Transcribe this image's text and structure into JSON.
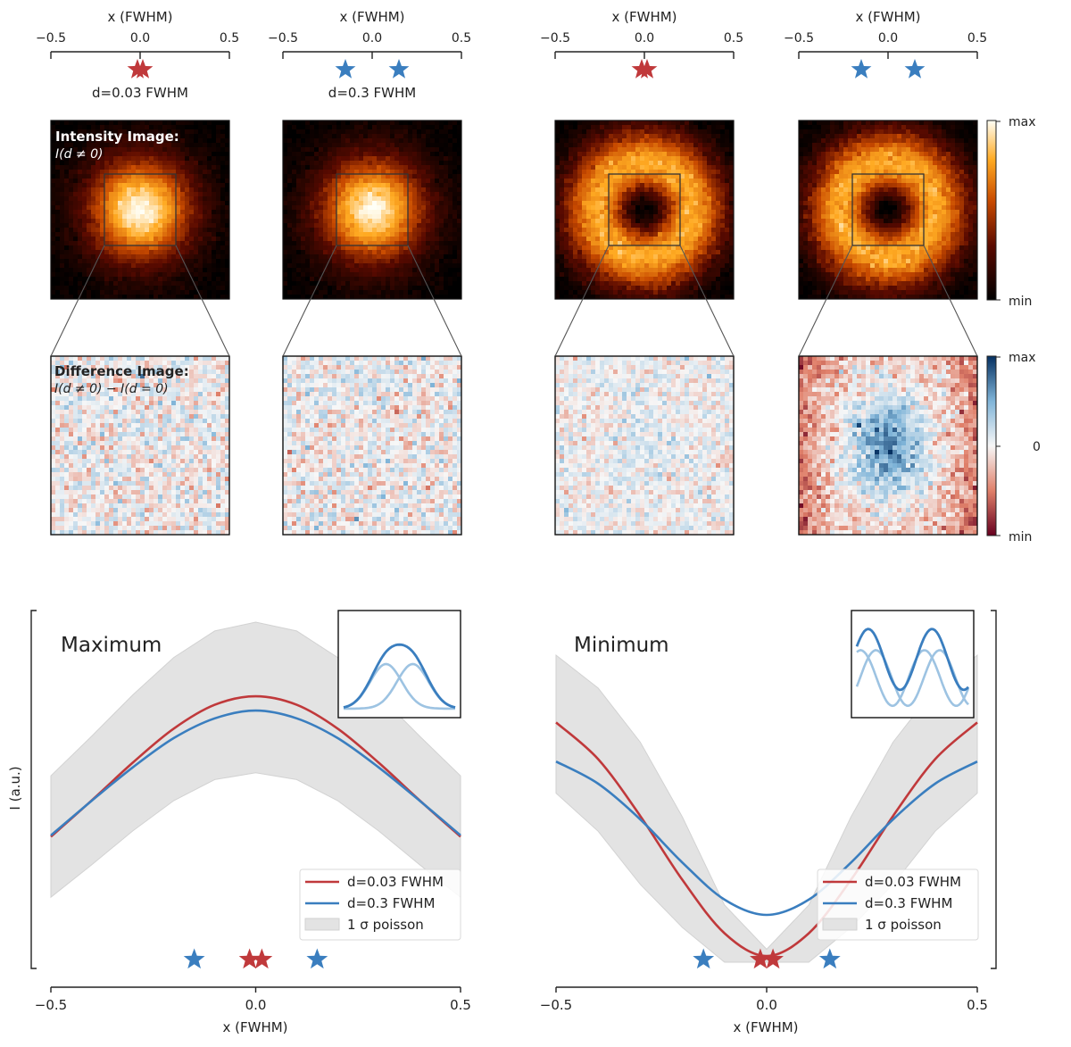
{
  "chart_data": {
    "type": "composite",
    "top_axes": [
      {
        "xlabel": "x (FWHM)",
        "ticks": [
          -0.5,
          0.0,
          0.5
        ],
        "tick_labels": [
          "−0.5",
          "0.0",
          "0.5"
        ],
        "xlim": [
          -0.5,
          0.5
        ],
        "star_color": "red",
        "star_positions": [
          -0.015,
          0.015
        ],
        "caption": "d=0.03 FWHM"
      },
      {
        "xlabel": "x (FWHM)",
        "ticks": [
          -0.5,
          0.0,
          0.5
        ],
        "tick_labels": [
          "−0.5",
          "0.0",
          "0.5"
        ],
        "xlim": [
          -0.5,
          0.5
        ],
        "star_color": "blue",
        "star_positions": [
          -0.15,
          0.15
        ],
        "caption": "d=0.3 FWHM"
      },
      {
        "xlabel": "x (FWHM)",
        "ticks": [
          -0.5,
          0.0,
          0.5
        ],
        "tick_labels": [
          "−0.5",
          "0.0",
          "0.5"
        ],
        "xlim": [
          -0.5,
          0.5
        ],
        "star_color": "red",
        "star_positions": [
          -0.015,
          0.015
        ],
        "caption": ""
      },
      {
        "xlabel": "x (FWHM)",
        "ticks": [
          -0.5,
          0.0,
          0.5
        ],
        "tick_labels": [
          "−0.5",
          "0.0",
          "0.5"
        ],
        "xlim": [
          -0.5,
          0.5
        ],
        "star_color": "blue",
        "star_positions": [
          -0.15,
          0.15
        ],
        "caption": ""
      }
    ],
    "intensity_images": {
      "title": "Intensity Image:",
      "subtitle": "I(d ≠ 0)",
      "panels": [
        {
          "profile": "gaussian",
          "d": 0.03
        },
        {
          "profile": "gaussian",
          "d": 0.3
        },
        {
          "profile": "donut",
          "d": 0.03
        },
        {
          "profile": "donut",
          "d": 0.3
        }
      ],
      "colorbar": {
        "cmap": "afmhot",
        "max_label": "max",
        "min_label": "min"
      }
    },
    "difference_images": {
      "title": "Difference Image:",
      "subtitle": "I(d ≠ 0) − I(d = 0)",
      "panels": [
        {
          "pattern": "noise"
        },
        {
          "pattern": "noise"
        },
        {
          "pattern": "weak-center"
        },
        {
          "pattern": "strong-center-positive-edges-negative"
        }
      ],
      "colorbar": {
        "cmap": "RdBu",
        "max_label": "max",
        "mid_label": "0",
        "min_label": "min"
      }
    },
    "line_plots": [
      {
        "title": "Maximum",
        "ylabel": "I (a.u.)",
        "xlabel": "x (FWHM)",
        "xlim": [
          -0.5,
          0.5
        ],
        "ticks": [
          -0.5,
          0.0,
          0.5
        ],
        "tick_labels": [
          "−0.5",
          "0.0",
          "0.5"
        ],
        "ylim": [
          0,
          1
        ],
        "series": [
          {
            "name": "d=0.03 FWHM",
            "color": "#c0393b",
            "x": [
              -0.5,
              -0.4,
              -0.3,
              -0.2,
              -0.1,
              0,
              0.1,
              0.2,
              0.3,
              0.4,
              0.5
            ],
            "y": [
              0.369,
              0.476,
              0.587,
              0.687,
              0.757,
              0.782,
              0.757,
              0.687,
              0.587,
              0.476,
              0.369
            ]
          },
          {
            "name": "d=0.3 FWHM",
            "color": "#3a7ebf",
            "x": [
              -0.5,
              -0.4,
              -0.3,
              -0.2,
              -0.1,
              0,
              0.1,
              0.2,
              0.3,
              0.4,
              0.5
            ],
            "y": [
              0.373,
              0.475,
              0.573,
              0.659,
              0.717,
              0.74,
              0.717,
              0.659,
              0.573,
              0.475,
              0.373
            ]
          }
        ],
        "band": {
          "name": "1 σ poisson",
          "x": [
            -0.5,
            -0.4,
            -0.3,
            -0.2,
            -0.1,
            0,
            0.1,
            0.2,
            0.3,
            0.4,
            0.5
          ],
          "lower": [
            0.191,
            0.287,
            0.386,
            0.475,
            0.537,
            0.557,
            0.537,
            0.475,
            0.386,
            0.287,
            0.191
          ],
          "upper": [
            0.548,
            0.665,
            0.786,
            0.896,
            0.974,
            1.0,
            0.974,
            0.896,
            0.786,
            0.665,
            0.548
          ]
        },
        "stars": [
          {
            "x": -0.15,
            "color": "#3a7ebf"
          },
          {
            "x": -0.015,
            "color": "#c0393b"
          },
          {
            "x": 0.015,
            "color": "#c0393b"
          },
          {
            "x": 0.15,
            "color": "#3a7ebf"
          }
        ],
        "inset": "two offset gaussians and their sum",
        "legend_location": "lower-right"
      },
      {
        "title": "Minimum",
        "ylabel": "",
        "xlabel": "x (FWHM)",
        "xlim": [
          -0.5,
          0.5
        ],
        "ticks": [
          -0.5,
          0.0,
          0.5
        ],
        "tick_labels": [
          "−0.5",
          "0.0",
          "0.5"
        ],
        "ylim": [
          0,
          1
        ],
        "series": [
          {
            "name": "d=0.03 FWHM",
            "color": "#c0393b",
            "x": [
              -0.5,
              -0.4,
              -0.3,
              -0.2,
              -0.1,
              0,
              0.1,
              0.2,
              0.3,
              0.4,
              0.5
            ],
            "y": [
              0.705,
              0.597,
              0.43,
              0.242,
              0.085,
              0.018,
              0.085,
              0.242,
              0.43,
              0.597,
              0.705
            ]
          },
          {
            "name": "d=0.3 FWHM",
            "color": "#3a7ebf",
            "x": [
              -0.5,
              -0.4,
              -0.3,
              -0.2,
              -0.1,
              0,
              0.1,
              0.2,
              0.3,
              0.4,
              0.5
            ],
            "y": [
              0.59,
              0.525,
              0.42,
              0.293,
              0.184,
              0.139,
              0.184,
              0.293,
              0.42,
              0.525,
              0.59
            ]
          }
        ],
        "band": {
          "name": "1 σ poisson",
          "x": [
            -0.5,
            -0.4,
            -0.3,
            -0.2,
            -0.1,
            0,
            0.1,
            0.2,
            0.3,
            0.4,
            0.5
          ],
          "lower": [
            0.497,
            0.385,
            0.229,
            0.102,
            0.0,
            0.0,
            0.0,
            0.102,
            0.229,
            0.385,
            0.497
          ],
          "upper": [
            0.903,
            0.806,
            0.647,
            0.427,
            0.168,
            0.038,
            0.168,
            0.427,
            0.647,
            0.806,
            0.903
          ]
        },
        "stars": [
          {
            "x": -0.15,
            "color": "#3a7ebf"
          },
          {
            "x": -0.015,
            "color": "#c0393b"
          },
          {
            "x": 0.015,
            "color": "#c0393b"
          },
          {
            "x": 0.15,
            "color": "#3a7ebf"
          }
        ],
        "inset": "two offset sine waves and their sum",
        "legend_location": "lower-right"
      }
    ],
    "colors": {
      "red": "#c0393b",
      "blue": "#3a7ebf",
      "band": "#e3e3e3"
    }
  }
}
